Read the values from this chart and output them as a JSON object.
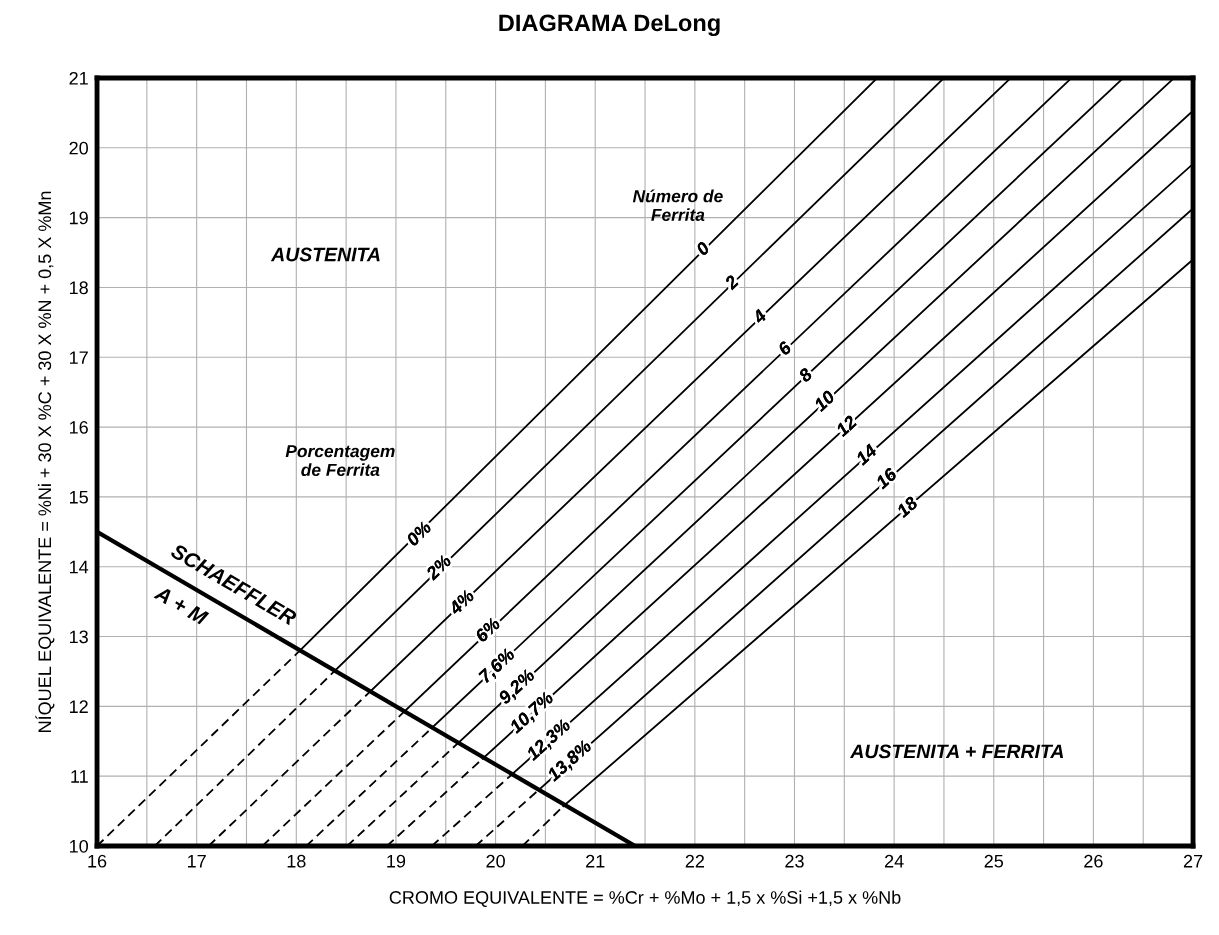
{
  "chart_data": {
    "type": "line",
    "title": "DIAGRAMA DeLong",
    "xlabel": "CROMO EQUIVALENTE = %Cr + %Mo + 1,5 x %Si +1,5 x %Nb",
    "ylabel": "NÍQUEL EQUIVALENTE = %Ni + 30 X %C + 30 X %N + 0,5 X %Mn",
    "xlim": [
      16,
      27
    ],
    "ylim": [
      10,
      21
    ],
    "xticks": [
      16,
      {
        "value": 16.5,
        "label": null
      },
      17,
      {
        "value": 17.5,
        "label": null
      },
      18,
      {
        "value": 18.5,
        "label": null
      },
      19,
      {
        "value": 19.5,
        "label": null
      },
      20,
      {
        "value": 20.5,
        "label": null
      },
      21,
      {
        "value": 21.5,
        "label": null
      },
      22,
      {
        "value": 22.5,
        "label": null
      },
      23,
      {
        "value": 23.5,
        "label": null
      },
      24,
      {
        "value": 24.5,
        "label": null
      },
      25,
      {
        "value": 25.5,
        "label": null
      },
      26,
      {
        "value": 26.5,
        "label": null
      },
      27
    ],
    "yticks": [
      10,
      11,
      12,
      13,
      14,
      15,
      16,
      17,
      18,
      19,
      20,
      21
    ],
    "grid": true,
    "marker": "none",
    "series": [
      {
        "color": "#000000",
        "line_style": "solid",
        "x": [
          16,
          21.4
        ],
        "values": [
          14.5,
          10
        ]
      },
      {
        "type": "line",
        "color": "#000000",
        "line_style": "dashed",
        "x": [
          16,
          18.03
        ],
        "values": [
          10,
          12.79
        ]
      },
      {
        "type": "line",
        "color": "#000000",
        "line_style": "solid",
        "x": [
          18.03,
          23.83
        ],
        "values": [
          12.79,
          21
        ]
      },
      {
        "type": "line",
        "color": "#000000",
        "line_style": "dashed",
        "x": [
          16.58,
          18.38
        ],
        "values": [
          10,
          12.5
        ]
      },
      {
        "type": "line",
        "color": "#000000",
        "line_style": "solid",
        "x": [
          18.38,
          24.5
        ],
        "values": [
          12.5,
          21
        ]
      },
      {
        "type": "line",
        "color": "#000000",
        "line_style": "dashed",
        "x": [
          17.12,
          18.74
        ],
        "values": [
          10,
          12.21
        ]
      },
      {
        "type": "line",
        "color": "#000000",
        "line_style": "solid",
        "x": [
          18.74,
          25.17
        ],
        "values": [
          12.21,
          21
        ]
      },
      {
        "type": "line",
        "color": "#000000",
        "line_style": "dashed",
        "x": [
          17.66,
          19.08
        ],
        "values": [
          10,
          11.92
        ]
      },
      {
        "type": "line",
        "color": "#000000",
        "line_style": "solid",
        "x": [
          19.08,
          25.78
        ],
        "values": [
          11.92,
          21
        ]
      },
      {
        "type": "line",
        "color": "#000000",
        "line_style": "dashed",
        "x": [
          18.1,
          19.36
        ],
        "values": [
          10,
          11.69
        ]
      },
      {
        "type": "line",
        "color": "#000000",
        "line_style": "solid",
        "x": [
          19.36,
          26.3
        ],
        "values": [
          11.69,
          21
        ]
      },
      {
        "type": "line",
        "color": "#000000",
        "line_style": "dashed",
        "x": [
          18.51,
          19.62
        ],
        "values": [
          10,
          11.47
        ]
      },
      {
        "type": "line",
        "color": "#000000",
        "line_style": "solid",
        "x": [
          19.62,
          26.81
        ],
        "values": [
          11.47,
          21
        ]
      },
      {
        "type": "line",
        "color": "#000000",
        "line_style": "dashed",
        "x": [
          18.91,
          19.87
        ],
        "values": [
          10,
          11.25
        ]
      },
      {
        "type": "line",
        "color": "#000000",
        "line_style": "solid",
        "x": [
          19.87,
          27
        ],
        "values": [
          11.25,
          20.53
        ]
      },
      {
        "type": "line",
        "color": "#000000",
        "line_style": "dashed",
        "x": [
          19.36,
          20.16
        ],
        "values": [
          10,
          11.02
        ]
      },
      {
        "type": "line",
        "color": "#000000",
        "line_style": "solid",
        "x": [
          20.16,
          27
        ],
        "values": [
          11.02,
          19.77
        ]
      },
      {
        "type": "line",
        "color": "#000000",
        "line_style": "dashed",
        "x": [
          19.8,
          20.43
        ],
        "values": [
          10,
          10.8
        ]
      },
      {
        "type": "line",
        "color": "#000000",
        "line_style": "solid",
        "x": [
          20.43,
          27
        ],
        "values": [
          10.8,
          19.13
        ]
      },
      {
        "type": "line",
        "color": "#000000",
        "line_style": "dashed",
        "x": [
          20.27,
          20.68
        ],
        "values": [
          10,
          10.57
        ]
      },
      {
        "type": "line",
        "color": "#000000",
        "line_style": "solid",
        "x": [
          20.68,
          27
        ],
        "values": [
          10.57,
          18.4
        ]
      }
    ],
    "annotations": [
      "AUSTENITA",
      "AUSTENITA + FERRITA",
      "Número de\nFerrita",
      "Porcentagem\nde Ferrita",
      {
        "text": "SCHAEFFLER",
        "x": 17.25,
        "y": 13.45
      },
      {
        "text": "A + M",
        "x": 16.95,
        "y": 13.7
      },
      {
        "text": "0",
        "x": 22.09,
        "y": 18.54
      },
      {
        "text": "2",
        "x": 22.38,
        "y": 18.06
      },
      {
        "text": "4",
        "x": 22.66,
        "y": 17.57
      },
      {
        "text": "6",
        "x": 22.91,
        "y": 17.11
      },
      {
        "text": "8",
        "x": 23.12,
        "y": 16.73
      },
      {
        "text": "10",
        "x": 23.31,
        "y": 16.36
      },
      {
        "text": "12",
        "x": 23.53,
        "y": 16.0
      },
      {
        "text": "14",
        "x": 23.73,
        "y": 15.59
      },
      {
        "text": "16",
        "x": 23.93,
        "y": 15.25
      },
      {
        "text": "18",
        "x": 24.14,
        "y": 14.84
      },
      {
        "text": "0%",
        "x": 19.24,
        "y": 14.46
      },
      {
        "text": "2%",
        "x": 19.44,
        "y": 13.98
      },
      {
        "text": "4%",
        "x": 19.67,
        "y": 13.48
      },
      {
        "text": "6%",
        "x": 19.93,
        "y": 13.08
      },
      {
        "text": "7,6%",
        "x": 20.02,
        "y": 12.57
      },
      {
        "text": "9,2%",
        "x": 20.22,
        "y": 12.27
      },
      {
        "text": "10,7%",
        "x": 20.37,
        "y": 11.9
      },
      {
        "text": "12,3%",
        "x": 20.54,
        "y": 11.51
      },
      {
        "text": "13,8%",
        "x": 20.75,
        "y": 11.21
      }
    ]
  }
}
